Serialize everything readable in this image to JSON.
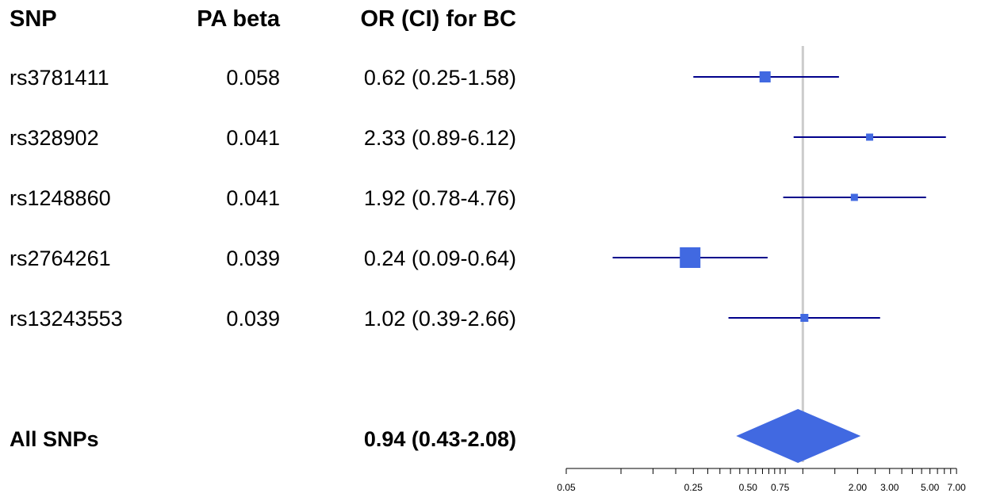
{
  "chart_data": {
    "type": "forest",
    "columns": {
      "snp": "SNP",
      "beta": "PA beta",
      "or": "OR (CI) for BC"
    },
    "rows": [
      {
        "snp": "rs3781411",
        "beta": "0.058",
        "or_text": "0.62 (0.25-1.58)",
        "or": 0.62,
        "lo": 0.25,
        "hi": 1.58
      },
      {
        "snp": "rs328902",
        "beta": "0.041",
        "or_text": "2.33 (0.89-6.12)",
        "or": 2.33,
        "lo": 0.89,
        "hi": 6.12
      },
      {
        "snp": "rs1248860",
        "beta": "0.041",
        "or_text": "1.92 (0.78-4.76)",
        "or": 1.92,
        "lo": 0.78,
        "hi": 4.76
      },
      {
        "snp": "rs2764261",
        "beta": "0.039",
        "or_text": "0.24 (0.09-0.64)",
        "or": 0.24,
        "lo": 0.09,
        "hi": 0.64
      },
      {
        "snp": "rs13243553",
        "beta": "0.039",
        "or_text": "1.02 (0.39-2.66)",
        "or": 1.02,
        "lo": 0.39,
        "hi": 2.66
      }
    ],
    "summary": {
      "label": "All SNPs",
      "or_text": "0.94 (0.43-2.08)",
      "or": 0.94,
      "lo": 0.43,
      "hi": 2.08
    },
    "x_axis": {
      "scale": "log",
      "range": [
        0.05,
        7.5
      ],
      "ticks": [
        0.05,
        0.1,
        0.15,
        0.2,
        0.25,
        0.3,
        0.35,
        0.4,
        0.45,
        0.5,
        0.55,
        0.6,
        0.65,
        0.7,
        0.75,
        0.8,
        1,
        1.5,
        2,
        2.5,
        3,
        3.5,
        4,
        4.5,
        5,
        5.5,
        6,
        6.5,
        7
      ],
      "tick_labels": [
        {
          "value": 0.05,
          "text": "0.05"
        },
        {
          "value": 0.25,
          "text": "0.25"
        },
        {
          "value": 0.5,
          "text": "0.50"
        },
        {
          "value": 0.75,
          "text": "0.75"
        },
        {
          "value": 2,
          "text": "2.00"
        },
        {
          "value": 3,
          "text": "3.00"
        },
        {
          "value": 5,
          "text": "5.00"
        },
        {
          "value": 7,
          "text": "7.00"
        }
      ]
    },
    "reference_line": 1,
    "colors": {
      "box": "#4169e1",
      "ci_line": "#00008b",
      "diamond": "#4169e1",
      "reference": "#cccccc",
      "text": "#000000"
    }
  }
}
